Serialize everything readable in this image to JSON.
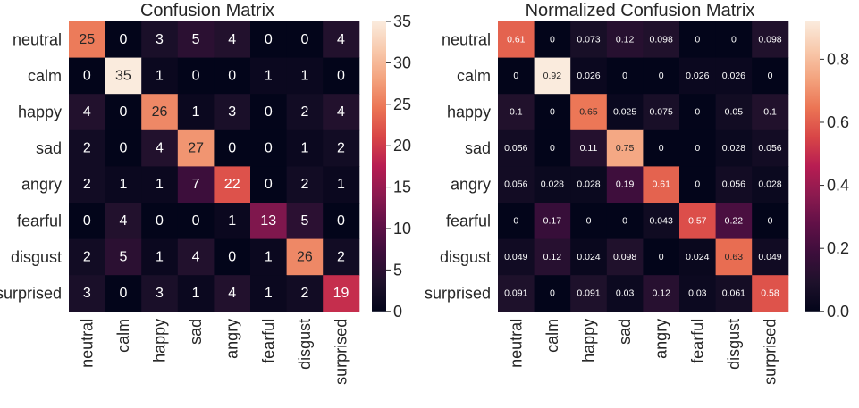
{
  "chart_data": [
    {
      "type": "heatmap",
      "title": "Confusion Matrix",
      "x_labels": [
        "neutral",
        "calm",
        "happy",
        "sad",
        "angry",
        "fearful",
        "disgust",
        "surprised"
      ],
      "y_labels": [
        "neutral",
        "calm",
        "happy",
        "sad",
        "angry",
        "fearful",
        "disgust",
        "surprised"
      ],
      "values": [
        [
          25,
          0,
          3,
          5,
          4,
          0,
          0,
          4
        ],
        [
          0,
          35,
          1,
          0,
          0,
          1,
          1,
          0
        ],
        [
          4,
          0,
          26,
          1,
          3,
          0,
          2,
          4
        ],
        [
          2,
          0,
          4,
          27,
          0,
          0,
          1,
          2
        ],
        [
          2,
          1,
          1,
          7,
          22,
          0,
          2,
          1
        ],
        [
          0,
          4,
          0,
          0,
          1,
          13,
          5,
          0
        ],
        [
          2,
          5,
          1,
          4,
          0,
          1,
          26,
          2
        ],
        [
          3,
          0,
          3,
          1,
          4,
          1,
          2,
          19
        ]
      ],
      "annotations": [
        [
          "25",
          "0",
          "3",
          "5",
          "4",
          "0",
          "0",
          "4"
        ],
        [
          "0",
          "35",
          "1",
          "0",
          "0",
          "1",
          "1",
          "0"
        ],
        [
          "4",
          "0",
          "26",
          "1",
          "3",
          "0",
          "2",
          "4"
        ],
        [
          "2",
          "0",
          "4",
          "27",
          "0",
          "0",
          "1",
          "2"
        ],
        [
          "2",
          "1",
          "1",
          "7",
          "22",
          "0",
          "2",
          "1"
        ],
        [
          "0",
          "4",
          "0",
          "0",
          "1",
          "13",
          "5",
          "0"
        ],
        [
          "2",
          "5",
          "1",
          "4",
          "0",
          "1",
          "26",
          "2"
        ],
        [
          "3",
          "0",
          "3",
          "1",
          "4",
          "1",
          "2",
          "19"
        ]
      ],
      "vmin": 0,
      "vmax": 35,
      "colorbar_ticks": [
        0,
        5,
        10,
        15,
        20,
        25,
        30,
        35
      ],
      "colorbar_labels": [
        "0",
        "5",
        "10",
        "15",
        "20",
        "25",
        "30",
        "35"
      ]
    },
    {
      "type": "heatmap",
      "title": "Normalized Confusion Matrix",
      "x_labels": [
        "neutral",
        "calm",
        "happy",
        "sad",
        "angry",
        "fearful",
        "disgust",
        "surprised"
      ],
      "y_labels": [
        "neutral",
        "calm",
        "happy",
        "sad",
        "angry",
        "fearful",
        "disgust",
        "surprised"
      ],
      "values": [
        [
          0.61,
          0,
          0.073,
          0.12,
          0.098,
          0,
          0,
          0.098
        ],
        [
          0,
          0.92,
          0.026,
          0,
          0,
          0.026,
          0.026,
          0
        ],
        [
          0.1,
          0,
          0.65,
          0.025,
          0.075,
          0,
          0.05,
          0.1
        ],
        [
          0.056,
          0,
          0.11,
          0.75,
          0,
          0,
          0.028,
          0.056
        ],
        [
          0.056,
          0.028,
          0.028,
          0.19,
          0.61,
          0,
          0.056,
          0.028
        ],
        [
          0,
          0.17,
          0,
          0,
          0.043,
          0.57,
          0.22,
          0
        ],
        [
          0.049,
          0.12,
          0.024,
          0.098,
          0,
          0.024,
          0.63,
          0.049
        ],
        [
          0.091,
          0,
          0.091,
          0.03,
          0.12,
          0.03,
          0.061,
          0.58
        ]
      ],
      "annotations": [
        [
          "0.61",
          "0",
          "0.073",
          "0.12",
          "0.098",
          "0",
          "0",
          "0.098"
        ],
        [
          "0",
          "0.92",
          "0.026",
          "0",
          "0",
          "0.026",
          "0.026",
          "0"
        ],
        [
          "0.1",
          "0",
          "0.65",
          "0.025",
          "0.075",
          "0",
          "0.05",
          "0.1"
        ],
        [
          "0.056",
          "0",
          "0.11",
          "0.75",
          "0",
          "0",
          "0.028",
          "0.056"
        ],
        [
          "0.056",
          "0.028",
          "0.028",
          "0.19",
          "0.61",
          "0",
          "0.056",
          "0.028"
        ],
        [
          "0",
          "0.17",
          "0",
          "0",
          "0.043",
          "0.57",
          "0.22",
          "0"
        ],
        [
          "0.049",
          "0.12",
          "0.024",
          "0.098",
          "0",
          "0.024",
          "0.63",
          "0.049"
        ],
        [
          "0.091",
          "0",
          "0.091",
          "0.03",
          "0.12",
          "0.03",
          "0.061",
          "0.58"
        ]
      ],
      "vmin": 0,
      "vmax": 0.92,
      "colorbar_ticks": [
        0,
        0.2,
        0.4,
        0.6,
        0.8
      ],
      "colorbar_labels": [
        "0.0",
        "0.2",
        "0.4",
        "0.6",
        "0.8"
      ]
    }
  ],
  "colormap": {
    "name": "rocket",
    "stops": [
      "#03051a",
      "#1e112b",
      "#3c0e3b",
      "#601047",
      "#8b1a4f",
      "#b71d52",
      "#d84547",
      "#eb7454",
      "#f3a27d",
      "#f8c9ac",
      "#faebdd"
    ]
  }
}
